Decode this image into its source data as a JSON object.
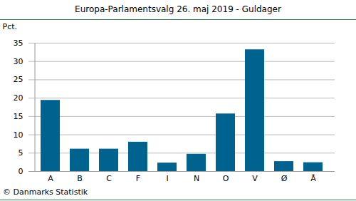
{
  "chart_data": {
    "type": "bar",
    "title": "Europa-Parlamentsvalg 26. maj 2019 - Guldager",
    "y_label": "Pct.",
    "caption": "© Danmarks Statistik",
    "categories": [
      "A",
      "B",
      "C",
      "F",
      "I",
      "N",
      "O",
      "V",
      "Ø",
      "Å"
    ],
    "values": [
      19.4,
      6.1,
      6.1,
      8.0,
      2.3,
      4.7,
      15.7,
      33.2,
      2.7,
      2.4
    ],
    "color": "#00628f",
    "ylim": [
      0,
      35
    ],
    "yticks": [
      0,
      5,
      10,
      15,
      20,
      25,
      30,
      35
    ],
    "grid": true
  }
}
